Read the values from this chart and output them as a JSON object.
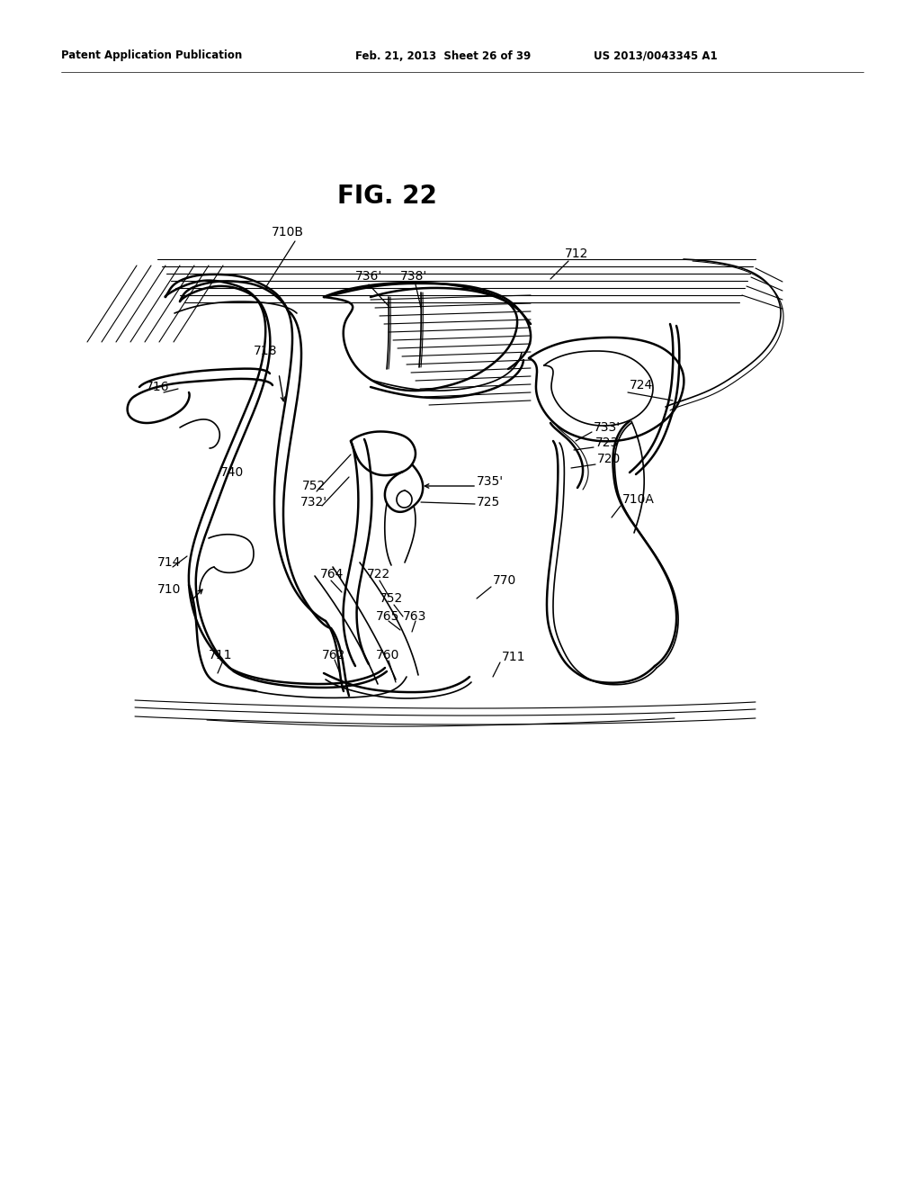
{
  "bg_color": "#ffffff",
  "line_color": "#000000",
  "title": "FIG. 22",
  "header_left": "Patent Application Publication",
  "header_mid": "Feb. 21, 2013  Sheet 26 of 39",
  "header_right": "US 2013/0043345 A1",
  "figsize": [
    10.24,
    13.2
  ],
  "dpi": 100
}
